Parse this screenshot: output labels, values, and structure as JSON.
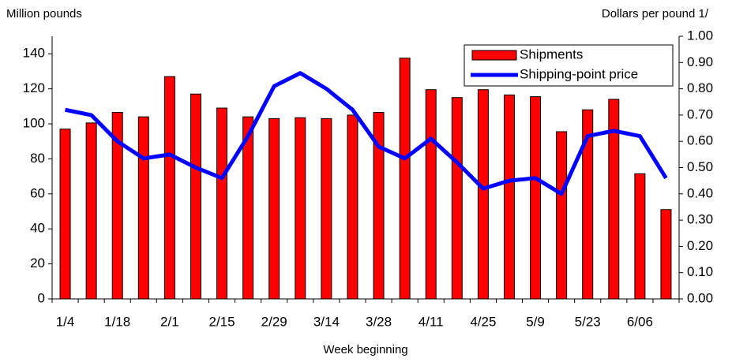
{
  "chart_data": {
    "type": "bar-line",
    "y_label": "Million pounds",
    "y2_label": "Dollars per pound 1/",
    "x_label": "Week beginning",
    "categories": [
      "1/4",
      null,
      "1/18",
      null,
      "2/1",
      null,
      "2/15",
      null,
      "2/29",
      null,
      "3/14",
      null,
      "3/28",
      null,
      "4/11",
      null,
      "4/25",
      null,
      "5/9",
      null,
      "5/23",
      null,
      "6/06",
      null
    ],
    "series": [
      {
        "name": "Shipments",
        "type": "bar",
        "color": "#ff0000",
        "values": [
          97,
          100.5,
          106.5,
          104,
          127,
          117,
          109,
          104,
          103,
          103.5,
          103,
          105,
          106.5,
          137.5,
          119.5,
          115,
          119.5,
          116.5,
          115.5,
          95.5,
          108,
          114,
          71.5,
          51
        ]
      },
      {
        "name": "Shipping-point price",
        "type": "line",
        "axis": "y2",
        "color": "#0000ff",
        "values": [
          0.72,
          0.7,
          0.6,
          0.535,
          0.55,
          0.5,
          0.46,
          0.62,
          0.81,
          0.86,
          0.8,
          0.72,
          0.58,
          0.535,
          0.61,
          0.52,
          0.42,
          0.45,
          0.46,
          0.4,
          0.62,
          0.64,
          0.62,
          0.46
        ]
      }
    ],
    "ylim": [
      0,
      150
    ],
    "yticks": [
      0,
      20,
      40,
      60,
      80,
      100,
      120,
      140
    ],
    "y2lim": [
      0,
      1
    ],
    "y2ticks": [
      {
        "value": 0,
        "label": "0.00"
      },
      {
        "value": 0.1,
        "label": "0.10"
      },
      {
        "value": 0.2,
        "label": "0.20"
      },
      {
        "value": 0.3,
        "label": "0.30"
      },
      {
        "value": 0.4,
        "label": "0.40"
      },
      {
        "value": 0.5,
        "label": "0.50"
      },
      {
        "value": 0.6,
        "label": "0.60"
      },
      {
        "value": 0.7,
        "label": "0.70"
      },
      {
        "value": 0.8,
        "label": "0.80"
      },
      {
        "value": 0.9,
        "label": "0.90"
      },
      {
        "value": 1,
        "label": "1.00"
      }
    ],
    "legend": "upper-right"
  }
}
